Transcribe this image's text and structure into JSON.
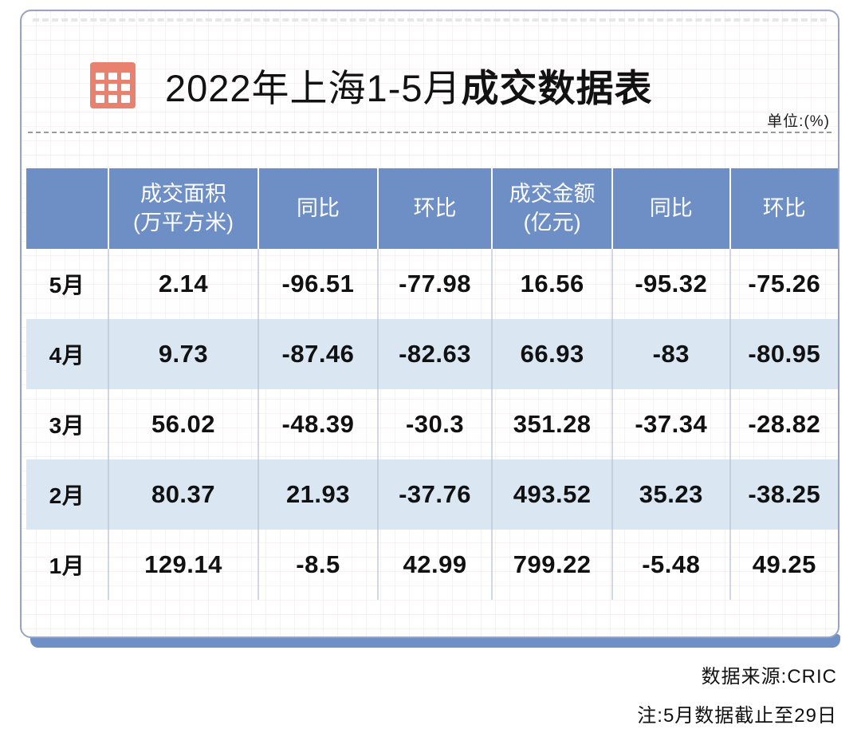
{
  "title": {
    "prefix": "2022年上海1-5月",
    "emphasis": "成交数据表",
    "unit_label": "单位:(%)"
  },
  "chart_data": {
    "type": "table",
    "title": "2022年上海1-5月成交数据表",
    "unit": "%",
    "columns": [
      {
        "line1": "",
        "line2": ""
      },
      {
        "line1": "成交面积",
        "line2": "(万平方米)"
      },
      {
        "line1": "同比",
        "line2": ""
      },
      {
        "line1": "环比",
        "line2": ""
      },
      {
        "line1": "成交金额",
        "line2": "(亿元)"
      },
      {
        "line1": "同比",
        "line2": ""
      },
      {
        "line1": "环比",
        "line2": ""
      }
    ],
    "rows": [
      {
        "month": "5月",
        "values": [
          "2.14",
          "-96.51",
          "-77.98",
          "16.56",
          "-95.32",
          "-75.26"
        ]
      },
      {
        "month": "4月",
        "values": [
          "9.73",
          "-87.46",
          "-82.63",
          "66.93",
          "-83",
          "-80.95"
        ]
      },
      {
        "month": "3月",
        "values": [
          "56.02",
          "-48.39",
          "-30.3",
          "351.28",
          "-37.34",
          "-28.82"
        ]
      },
      {
        "month": "2月",
        "values": [
          "80.37",
          "21.93",
          "-37.76",
          "493.52",
          "35.23",
          "-38.25"
        ]
      },
      {
        "month": "1月",
        "values": [
          "129.14",
          "-8.5",
          "42.99",
          "799.22",
          "-5.48",
          "49.25"
        ]
      }
    ]
  },
  "footer": {
    "source": "数据来源:CRIC",
    "note": "注:5月数据截止至29日"
  },
  "colors": {
    "header_blue": "#6E8FC6",
    "stripe_blue": "#DAE6F2",
    "accent_bar_blue": "#6E90C7",
    "icon_salmon": "#E8826E",
    "card_border": "#97A4C4"
  }
}
